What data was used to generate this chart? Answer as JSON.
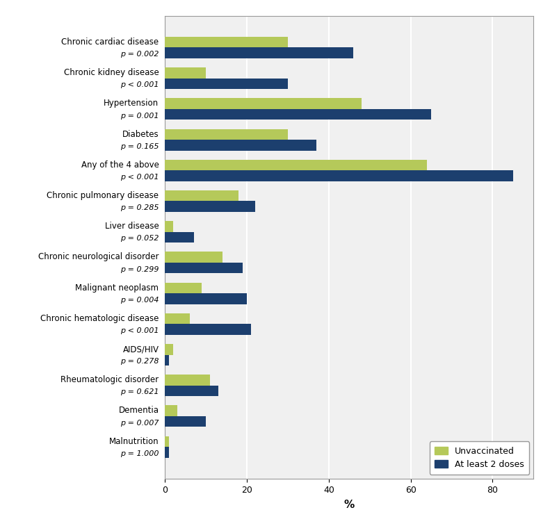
{
  "categories": [
    "Chronic cardiac disease",
    "Chronic kidney disease",
    "Hypertension",
    "Diabetes",
    "Any of the 4 above",
    "Chronic pulmonary disease",
    "Liver disease",
    "Chronic neurological disorder",
    "Malignant neoplasm",
    "Chronic hematologic disease",
    "AIDS/HIV",
    "Rheumatologic disorder",
    "Dementia",
    "Malnutrition"
  ],
  "pvalues": [
    "p = 0.002",
    "p < 0.001",
    "p = 0.001",
    "p = 0.165",
    "p < 0.001",
    "p = 0.285",
    "p = 0.052",
    "p = 0.299",
    "p = 0.004",
    "p < 0.001",
    "p = 0.278",
    "p = 0.621",
    "p = 0.007",
    "p = 1.000"
  ],
  "unvaccinated": [
    30,
    10,
    48,
    30,
    64,
    18,
    2,
    14,
    9,
    6,
    2,
    11,
    3,
    1
  ],
  "at_least_2_doses": [
    46,
    30,
    65,
    37,
    85,
    22,
    7,
    19,
    20,
    21,
    1,
    13,
    10,
    1
  ],
  "color_unvaccinated": "#b5c95a",
  "color_vaccinated": "#1c3f6e",
  "xlabel": "%",
  "xlim": [
    0,
    90
  ],
  "xticks": [
    0,
    20,
    40,
    60,
    80
  ],
  "legend_labels": [
    "Unvaccinated",
    "At least 2 doses"
  ],
  "bar_height": 0.35,
  "background_color": "#f0f0f0",
  "grid_color": "#ffffff",
  "border_color": "#999999"
}
